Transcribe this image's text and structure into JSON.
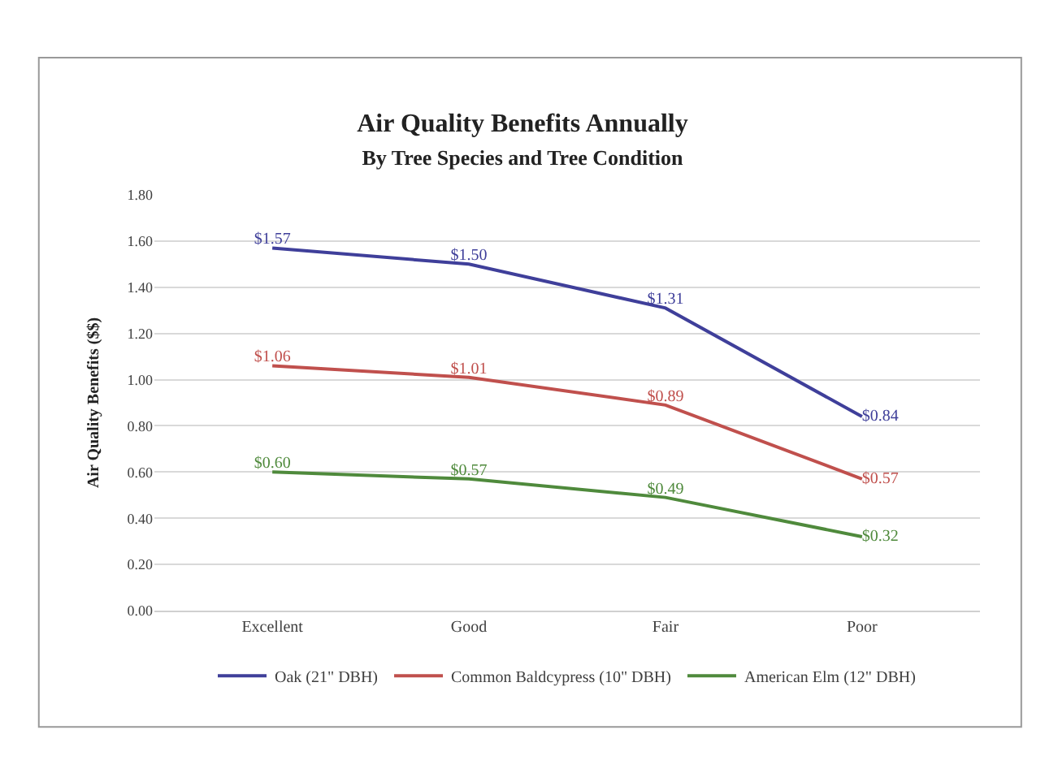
{
  "chart_data": {
    "type": "line",
    "title": "Air Quality Benefits Annually",
    "subtitle": "By Tree Species and Tree Condition",
    "ylabel": "Air Quality Benefits ($$)",
    "categories": [
      "Excellent",
      "Good",
      "Fair",
      "Poor"
    ],
    "series": [
      {
        "name": "Oak (21\" DBH)",
        "color": "#3f3f9a",
        "values": [
          1.57,
          1.5,
          1.31,
          0.84
        ],
        "value_labels": [
          "$1.57",
          "$1.50",
          "$1.31",
          "$0.84"
        ]
      },
      {
        "name": "Common Baldcypress (10\" DBH)",
        "color": "#c0504d",
        "values": [
          1.06,
          1.01,
          0.89,
          0.57
        ],
        "value_labels": [
          "$1.06",
          "$1.01",
          "$0.89",
          "$0.57"
        ]
      },
      {
        "name": "American Elm (12\" DBH)",
        "color": "#4f8a3c",
        "values": [
          0.6,
          0.57,
          0.49,
          0.32
        ],
        "value_labels": [
          "$0.60",
          "$0.57",
          "$0.49",
          "$0.32"
        ]
      }
    ],
    "ylim": [
      0,
      1.8
    ],
    "yticks": [
      {
        "value": 0,
        "label": "0.00"
      },
      {
        "value": 0.2,
        "label": "0.20"
      },
      {
        "value": 0.4,
        "label": "0.40"
      },
      {
        "value": 0.6,
        "label": "0.60"
      },
      {
        "value": 0.8,
        "label": "0.80"
      },
      {
        "value": 1.0,
        "label": "1.00"
      },
      {
        "value": 1.2,
        "label": "1.20"
      },
      {
        "value": 1.4,
        "label": "1.40"
      },
      {
        "value": 1.6,
        "label": "1.60"
      },
      {
        "value": 1.8,
        "label": "1.80"
      }
    ],
    "grid": "y",
    "legend": "bottom",
    "marker": "none",
    "line_style": "solid"
  }
}
